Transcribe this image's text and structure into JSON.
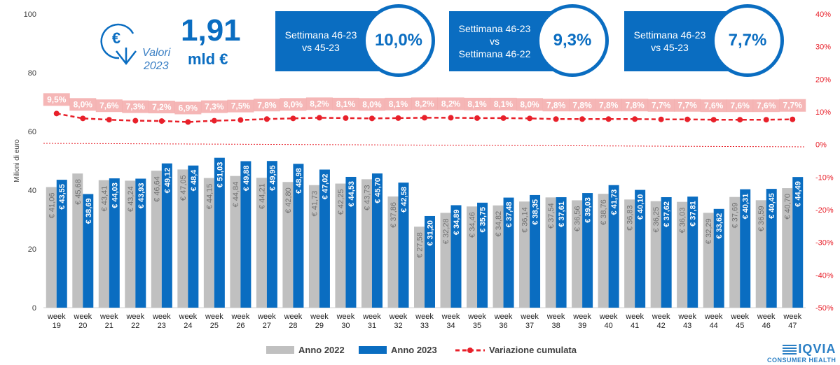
{
  "chart_data": {
    "type": "bar",
    "title": "",
    "ylabel": "Milioni di euro",
    "ylim": [
      0,
      100
    ],
    "y_ticks": [
      "0",
      "20",
      "40",
      "60",
      "80",
      "100"
    ],
    "y2lim": [
      -50,
      40
    ],
    "y2_ticks": [
      "-50%",
      "-40%",
      "-30%",
      "-20%",
      "-10%",
      "0%",
      "10%",
      "20%",
      "30%",
      "40%"
    ],
    "categories": [
      "week 19",
      "week 20",
      "week 21",
      "week 22",
      "week 23",
      "week 24",
      "week 25",
      "week 26",
      "week 27",
      "week 28",
      "week 29",
      "week 30",
      "week 31",
      "week 32",
      "week 33",
      "week 34",
      "week 35",
      "week 36",
      "week 37",
      "week 38",
      "week 39",
      "week 40",
      "week 41",
      "week 42",
      "week 43",
      "week 44",
      "week 45",
      "week 46",
      "week 47"
    ],
    "series": [
      {
        "name": "Anno 2022",
        "color": "#c0c0c0",
        "values": [
          41.06,
          45.68,
          43.41,
          43.24,
          46.64,
          47.05,
          44.15,
          44.84,
          44.21,
          42.8,
          41.73,
          42.25,
          43.73,
          37.86,
          27.58,
          32.28,
          34.46,
          34.82,
          36.14,
          37.54,
          36.56,
          38.76,
          36.83,
          36.25,
          36.03,
          32.29,
          37.69,
          36.59,
          40.7
        ],
        "labels": [
          "€ 41,06",
          "€ 45,68",
          "€ 43,41",
          "€ 43,24",
          "€ 46,64",
          "€ 47,05",
          "€ 44,15",
          "€ 44,84",
          "€ 44,21",
          "€ 42,80",
          "€ 41,73",
          "€ 42,25",
          "€ 43,73",
          "€ 37,86",
          "€ 27,58",
          "€ 32,28",
          "€ 34,46",
          "€ 34,82",
          "€ 36,14",
          "€ 37,54",
          "€ 36,56",
          "€ 38,76",
          "€ 36,83",
          "€ 36,25",
          "€ 36,03",
          "€ 32,29",
          "€ 37,69",
          "€ 36,59",
          "€ 40,70"
        ]
      },
      {
        "name": "Anno 2023",
        "color": "#0a6dc1",
        "values": [
          43.55,
          38.69,
          44.03,
          43.93,
          49.12,
          48.4,
          51.03,
          49.88,
          49.95,
          48.98,
          47.02,
          44.53,
          45.7,
          42.58,
          31.2,
          34.89,
          35.75,
          37.48,
          38.35,
          37.61,
          39.03,
          41.73,
          40.1,
          37.62,
          37.81,
          33.62,
          40.31,
          40.45,
          44.49
        ],
        "labels": [
          "€ 43,55",
          "€ 38,69",
          "€ 44,03",
          "€ 43,93",
          "€ 49,12",
          "€ 48,4",
          "€ 51,03",
          "€ 49,88",
          "€ 49,95",
          "€ 48,98",
          "€ 47,02",
          "€ 44,53",
          "€ 45,70",
          "€ 42,58",
          "€ 31,20",
          "€ 34,89",
          "€ 35,75",
          "€ 37,48",
          "€ 38,35",
          "€ 37,61",
          "€ 39,03",
          "€ 41,73",
          "€ 40,10",
          "€ 37,62",
          "€ 37,81",
          "€ 33,62",
          "€ 40,31",
          "€ 40,45",
          "€ 44,49"
        ]
      },
      {
        "name": "Variazione cumulata",
        "color": "#e8202a",
        "axis": "right",
        "values": [
          9.5,
          8.0,
          7.6,
          7.3,
          7.2,
          6.9,
          7.3,
          7.5,
          7.8,
          8.0,
          8.2,
          8.1,
          8.0,
          8.1,
          8.2,
          8.2,
          8.1,
          8.1,
          8.0,
          7.8,
          7.8,
          7.8,
          7.8,
          7.7,
          7.7,
          7.6,
          7.6,
          7.6,
          7.7
        ],
        "labels": [
          "9,5%",
          "8,0%",
          "7,6%",
          "7,3%",
          "7,2%",
          "6,9%",
          "7,3%",
          "7,5%",
          "7,8%",
          "8,0%",
          "8,2%",
          "8,1%",
          "8,0%",
          "8,1%",
          "8,2%",
          "8,2%",
          "8,1%",
          "8,1%",
          "8,0%",
          "7,8%",
          "7,8%",
          "7,8%",
          "7,8%",
          "7,7%",
          "7,7%",
          "7,6%",
          "7,6%",
          "7,6%",
          "7,7%"
        ]
      }
    ],
    "legend_position": "bottom"
  },
  "header": {
    "total_value": "1,91",
    "total_unit": "mld €",
    "valori_line1": "Valori",
    "valori_line2": "2023",
    "euro_icon": "euro-coin-arrow-icon"
  },
  "kpis": [
    {
      "line1": "Settimana 46-23",
      "line2": "vs 45-23",
      "line3": "",
      "value": "10,0%"
    },
    {
      "line1": "Settimana 46-23",
      "line2": "vs",
      "line3": "Settimana 46-22",
      "value": "9,3%"
    },
    {
      "line1": "Settimana 46-23",
      "line2": "vs 45-23",
      "line3": "",
      "value": "7,7%"
    }
  ],
  "brand": {
    "name": "IQVIA",
    "subtitle": "CONSUMER HEALTH",
    "logo_icon": "iqvia-lines-icon"
  }
}
